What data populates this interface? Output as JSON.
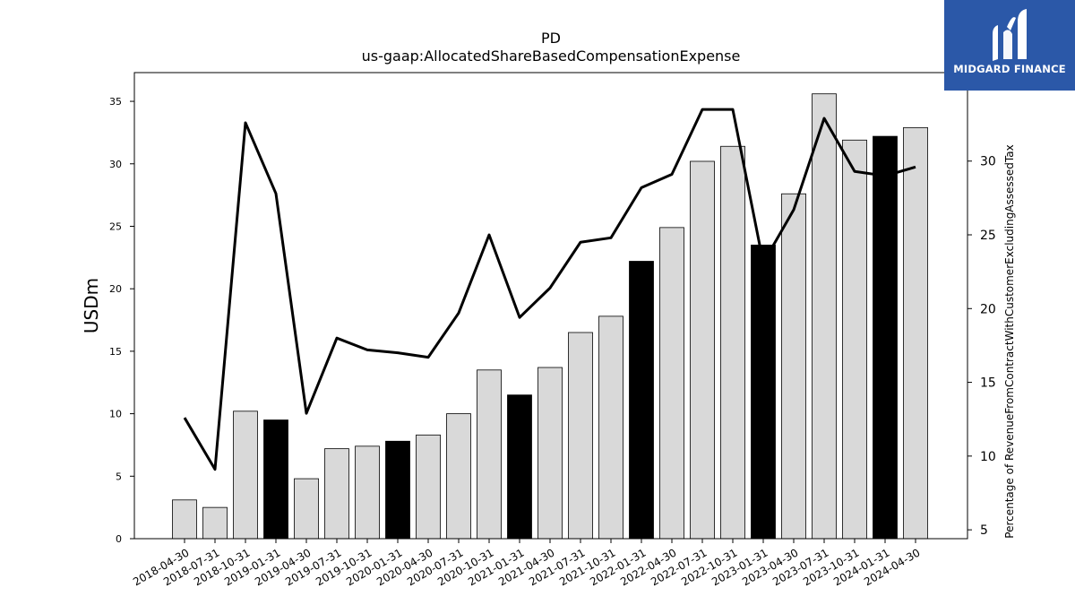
{
  "chart_data": {
    "type": "bar",
    "title": "PD",
    "subtitle": "us-gaap:AllocatedShareBasedCompensationExpense",
    "ylabel": "USDm",
    "y2label": "Percentage of RevenueFromContractWithCustomerExcludingAssessedTax",
    "ylim": [
      0,
      37.3
    ],
    "y2lim": [
      4.4,
      36.0
    ],
    "yticks": [
      0,
      5,
      10,
      15,
      20,
      25,
      30,
      35
    ],
    "y2ticks": [
      5,
      10,
      15,
      20,
      25,
      30
    ],
    "categories": [
      "2018-04-30",
      "2018-07-31",
      "2018-10-31",
      "2019-01-31",
      "2019-04-30",
      "2019-07-31",
      "2019-10-31",
      "2020-01-31",
      "2020-04-30",
      "2020-07-31",
      "2020-10-31",
      "2021-01-31",
      "2021-04-30",
      "2021-07-31",
      "2021-10-31",
      "2022-01-31",
      "2022-04-30",
      "2022-07-31",
      "2022-10-31",
      "2023-01-31",
      "2023-04-30",
      "2023-07-31",
      "2023-10-31",
      "2024-01-31",
      "2024-04-30"
    ],
    "series": [
      {
        "type": "bar",
        "values": [
          3.1,
          2.5,
          10.2,
          9.5,
          4.8,
          7.2,
          7.4,
          7.8,
          8.3,
          10.0,
          13.5,
          11.5,
          13.7,
          16.5,
          17.8,
          22.2,
          24.9,
          30.2,
          31.4,
          23.5,
          27.6,
          35.6,
          31.9,
          32.2,
          32.9
        ],
        "highlight": [
          false,
          false,
          false,
          true,
          false,
          false,
          false,
          true,
          false,
          false,
          false,
          true,
          false,
          false,
          false,
          true,
          false,
          false,
          false,
          true,
          false,
          false,
          false,
          true,
          false
        ]
      },
      {
        "type": "line",
        "axis": "right",
        "values": [
          12.6,
          9.1,
          32.6,
          27.8,
          12.9,
          18.0,
          17.2,
          17.0,
          16.7,
          19.7,
          25.0,
          19.4,
          21.4,
          24.5,
          24.8,
          28.2,
          29.1,
          33.5,
          33.5,
          23.1,
          26.7,
          32.9,
          29.3,
          29.0,
          29.6
        ]
      }
    ],
    "colors": {
      "bar": "#d9d9d9",
      "bar_highlight": "#000000",
      "line": "#000000",
      "edge": "#000000"
    },
    "grid": false
  },
  "logo": {
    "text": "MIDGARD FINANCE",
    "background": "#2b58a8"
  }
}
